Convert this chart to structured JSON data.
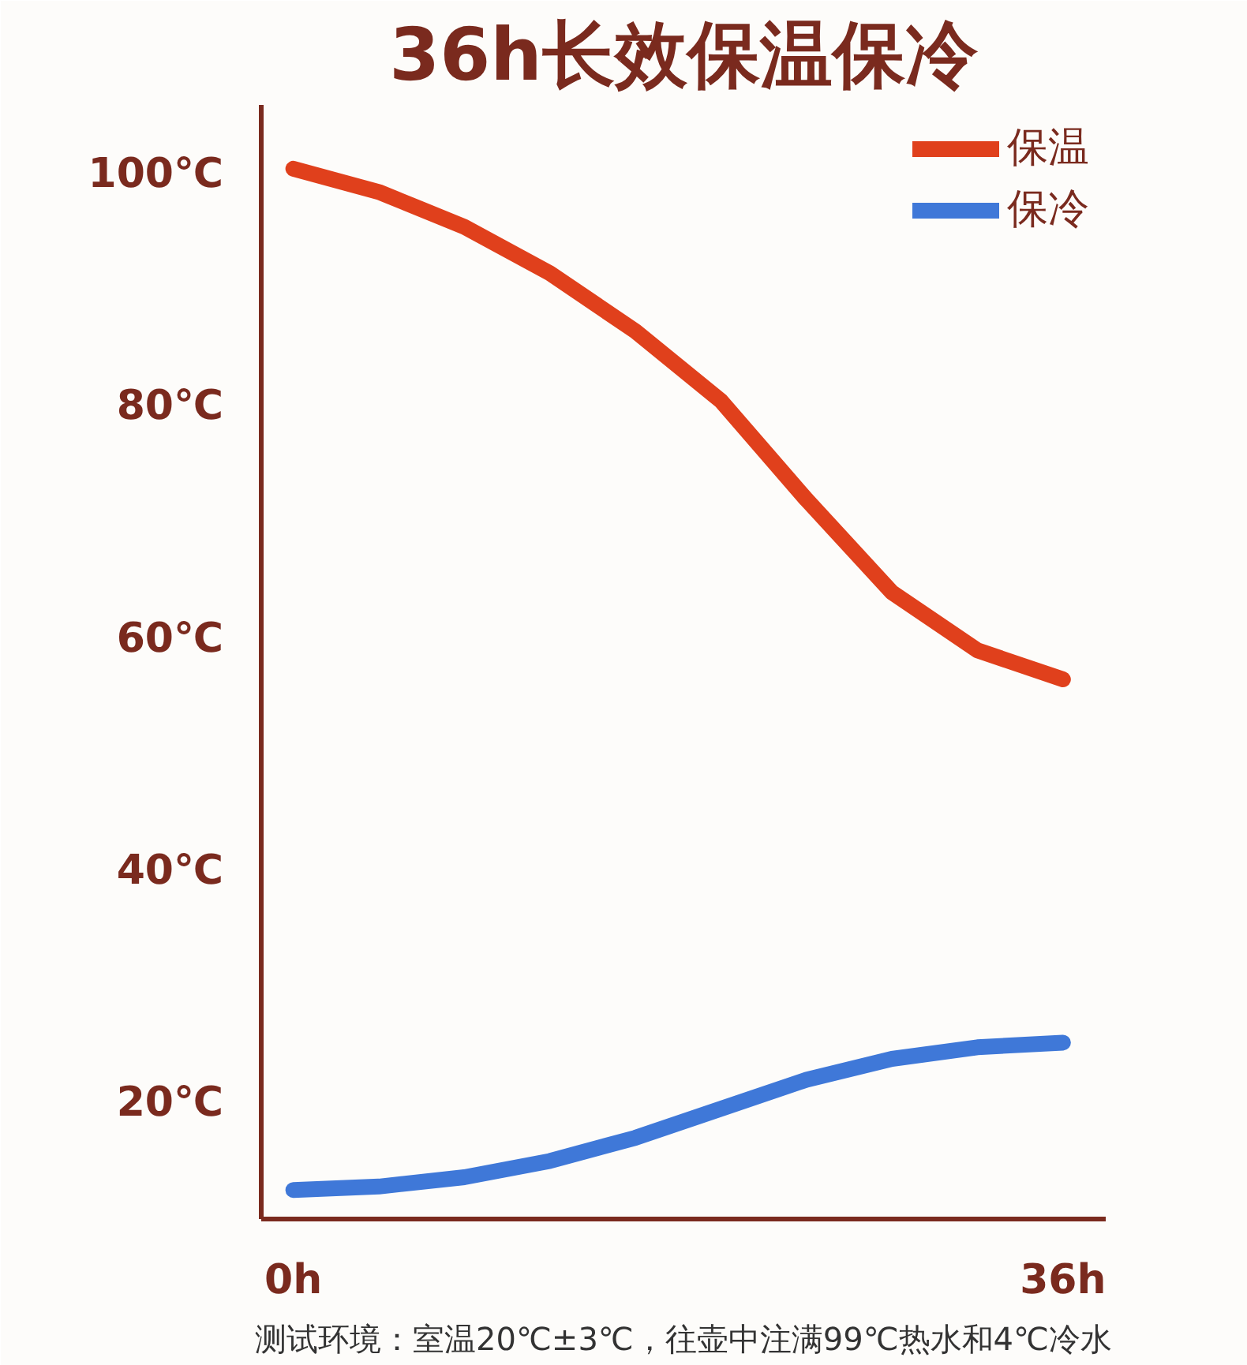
{
  "chart_data": {
    "type": "line",
    "title": "36h长效保温保冷",
    "x": [
      0,
      4,
      8,
      12,
      16,
      20,
      24,
      28,
      32,
      36
    ],
    "series": [
      {
        "name": "保温",
        "color": "#e0401c",
        "values": [
          100.5,
          98.5,
          95.5,
          91.5,
          86.5,
          80.5,
          72,
          64,
          59,
          56.5
        ]
      },
      {
        "name": "保冷",
        "color": "#3f78d8",
        "values": [
          12.5,
          12.8,
          13.6,
          15,
          17,
          19.5,
          22,
          23.8,
          24.8,
          25.2
        ]
      }
    ],
    "xlim": [
      -1.5,
      38
    ],
    "ylim": [
      10,
      106
    ],
    "xticks": [
      {
        "value": 0,
        "label": "0h"
      },
      {
        "value": 36,
        "label": "36h"
      }
    ],
    "yticks": [
      {
        "value": 20,
        "label": "20℃"
      },
      {
        "value": 40,
        "label": "40℃"
      },
      {
        "value": 60,
        "label": "60℃"
      },
      {
        "value": 80,
        "label": "80℃"
      },
      {
        "value": 100,
        "label": "100℃"
      }
    ],
    "grid": false,
    "legend": "top right",
    "marker": "none",
    "line_style": "solid",
    "annotations": [
      "测试环境：室温20℃±3℃，往壶中注满99℃热水和4℃冷水"
    ]
  }
}
